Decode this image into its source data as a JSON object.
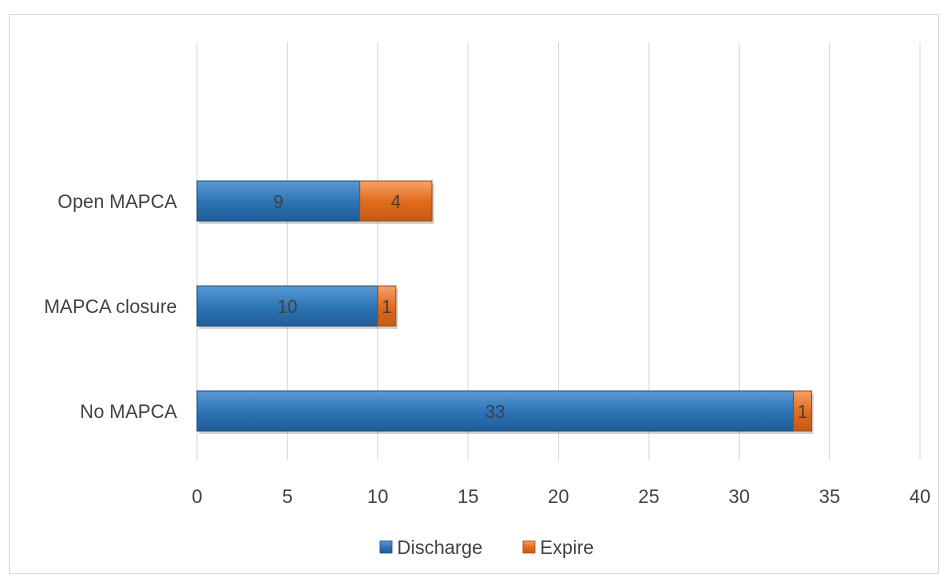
{
  "chart_data": {
    "type": "bar",
    "orientation": "horizontal",
    "stacked": true,
    "categories": [
      "Open MAPCA",
      "MAPCA closure",
      "No MAPCA"
    ],
    "series": [
      {
        "name": "Discharge",
        "values": [
          9,
          10,
          33
        ],
        "color": "#2e75b6"
      },
      {
        "name": "Expire",
        "values": [
          4,
          1,
          1
        ],
        "color": "#ed7d31"
      }
    ],
    "xlim": [
      0,
      40
    ],
    "xticks": [
      "0",
      "5",
      "10",
      "15",
      "20",
      "25",
      "30",
      "35",
      "40"
    ],
    "grid": true,
    "legend_position": "bottom",
    "data_labels": true
  }
}
